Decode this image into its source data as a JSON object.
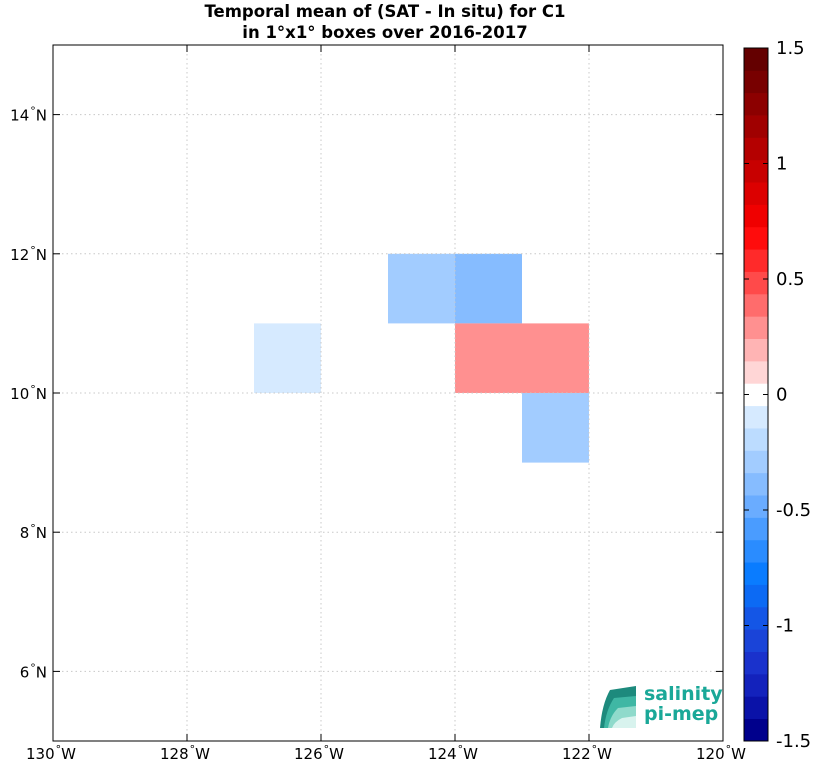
{
  "title_line1": "Temporal mean of (SAT - In situ) for C1",
  "title_line2": "in 1°x1° boxes over 2016-2017",
  "map": {
    "lon_range": [
      -130,
      -120
    ],
    "lat_range": [
      5,
      15
    ],
    "grid": true,
    "x_ticks": [
      {
        "value": -130,
        "label": "130",
        "suffix": "W"
      },
      {
        "value": -128,
        "label": "128",
        "suffix": "W"
      },
      {
        "value": -126,
        "label": "126",
        "suffix": "W"
      },
      {
        "value": -124,
        "label": "124",
        "suffix": "W"
      },
      {
        "value": -122,
        "label": "122",
        "suffix": "W"
      },
      {
        "value": -120,
        "label": "120",
        "suffix": "W"
      }
    ],
    "y_ticks": [
      {
        "value": 6,
        "label": "6",
        "suffix": "N"
      },
      {
        "value": 8,
        "label": "8",
        "suffix": "N"
      },
      {
        "value": 10,
        "label": "10",
        "suffix": "N"
      },
      {
        "value": 12,
        "label": "12",
        "suffix": "N"
      },
      {
        "value": 14,
        "label": "14",
        "suffix": "N"
      }
    ],
    "cells": [
      {
        "lon": -125,
        "lat": 11,
        "value": -0.25
      },
      {
        "lon": -124,
        "lat": 11,
        "value": -0.35
      },
      {
        "lon": -127,
        "lat": 10,
        "value": -0.12
      },
      {
        "lon": -124,
        "lat": 10,
        "value": 0.3
      },
      {
        "lon": -123,
        "lat": 10,
        "value": 0.3
      },
      {
        "lon": -123,
        "lat": 9,
        "value": -0.25
      }
    ]
  },
  "colorbar": {
    "range": [
      -1.5,
      1.5
    ],
    "ticks": [
      {
        "value": 1.5,
        "label": "1.5"
      },
      {
        "value": 1,
        "label": "1"
      },
      {
        "value": 0.5,
        "label": "0.5"
      },
      {
        "value": 0,
        "label": "0"
      },
      {
        "value": -0.5,
        "label": "-0.5"
      },
      {
        "value": -1,
        "label": "-1"
      },
      {
        "value": -1.5,
        "label": "-1.5"
      }
    ],
    "colors": [
      "#00008c",
      "#0a12a8",
      "#1322bc",
      "#1a32cc",
      "#1a44d8",
      "#1456e6",
      "#0c6af4",
      "#0a7cff",
      "#2a8cff",
      "#4a9cff",
      "#6aacff",
      "#86bcff",
      "#a2ccff",
      "#bcdcff",
      "#d6eaff",
      "#ffffff",
      "#ffd6d6",
      "#ffb4b4",
      "#ff9090",
      "#ff6c6c",
      "#ff4a4a",
      "#ff2a2a",
      "#ff0c0c",
      "#f00000",
      "#dc0000",
      "#c80000",
      "#b40000",
      "#a00000",
      "#8c0000",
      "#780000",
      "#640000"
    ]
  },
  "logo": {
    "line1": "salinity",
    "line2": "pi-mep"
  }
}
